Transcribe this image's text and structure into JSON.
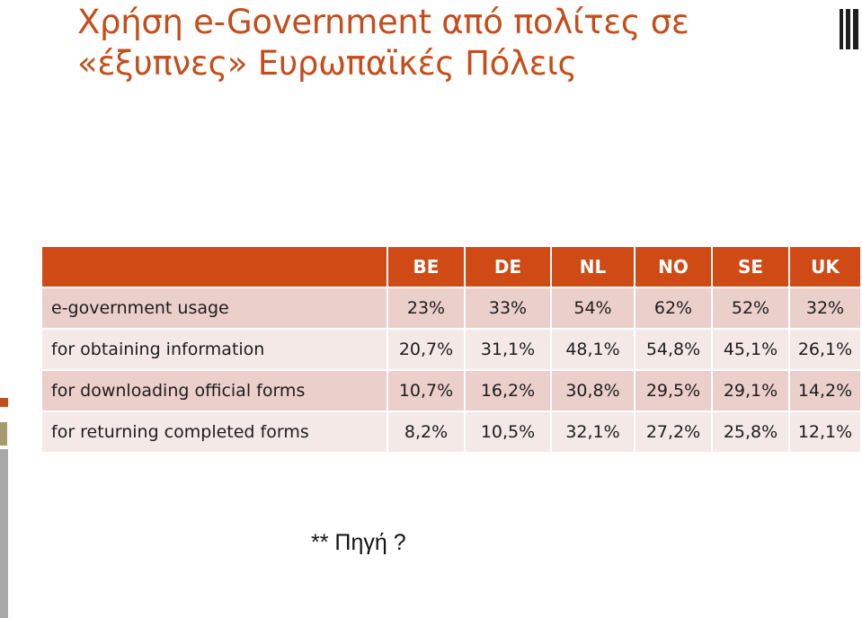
{
  "title": "Χρήση e-Government  από πολίτες σε\n«έξυπνες» Ευρωπαϊκές Πόλεις",
  "table": {
    "columns": [
      "",
      "BE",
      "DE",
      "NL",
      "NO",
      "SE",
      "UK"
    ],
    "rows": [
      {
        "label": "e-government usage",
        "values": [
          "23%",
          "33%",
          "54%",
          "62%",
          "52%",
          "32%"
        ]
      },
      {
        "label": "for obtaining information",
        "values": [
          "20,7%",
          "31,1%",
          "48,1%",
          "54,8%",
          "45,1%",
          "26,1%"
        ]
      },
      {
        "label": "for downloading official forms",
        "values": [
          "10,7%",
          "16,2%",
          "30,8%",
          "29,5%",
          "29,1%",
          "14,2%"
        ]
      },
      {
        "label": "for returning completed forms",
        "values": [
          "8,2%",
          "10,5%",
          "32,1%",
          "27,2%",
          "25,8%",
          "12,1%"
        ]
      }
    ]
  },
  "source_note": "** Πηγή ?",
  "colors": {
    "title": "#c44d1c",
    "header_bg": "#cf4a15",
    "row_odd": "#ebcfcb",
    "row_even": "#f5e9e7"
  }
}
